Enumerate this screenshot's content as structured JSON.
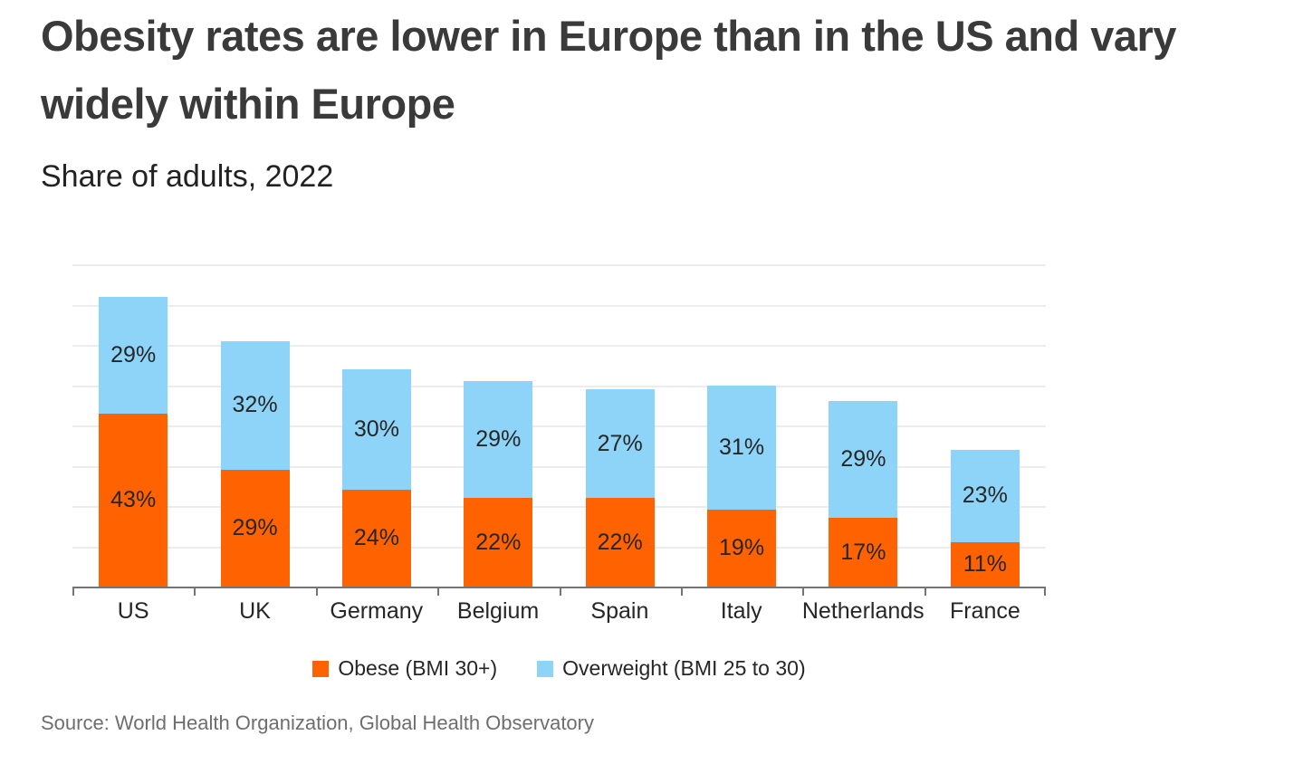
{
  "header": {
    "title": "Obesity rates are lower in Europe than in the US and vary widely within Europe",
    "subtitle": "Share of adults, 2022"
  },
  "chart_data": {
    "type": "bar",
    "stacked": true,
    "title": "Obesity rates are lower in Europe than in the US and vary widely within Europe",
    "subtitle": "Share of adults, 2022",
    "categories": [
      "US",
      "UK",
      "Germany",
      "Belgium",
      "Spain",
      "Italy",
      "Netherlands",
      "France"
    ],
    "series": [
      {
        "name": "Obese (BMI 30+)",
        "color": "#ff6200",
        "values": [
          43,
          29,
          24,
          22,
          22,
          19,
          17,
          11
        ]
      },
      {
        "name": "Overweight (BMI 25 to 30)",
        "color": "#8dd4f8",
        "values": [
          29,
          32,
          30,
          29,
          27,
          31,
          29,
          23
        ]
      }
    ],
    "value_suffix": "%",
    "data_labels": true,
    "xlabel": "",
    "ylabel": "",
    "ylim": [
      0,
      80
    ],
    "gridline_step": 10,
    "grid": true,
    "y_axis_labels_visible": false,
    "legend_position": "bottom"
  },
  "footer": {
    "source": "Source: World Health Organization, Global Health Observatory"
  }
}
